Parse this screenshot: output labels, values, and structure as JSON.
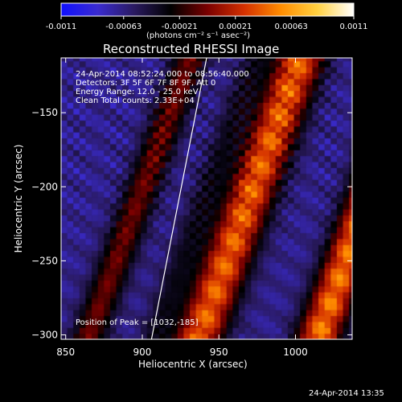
{
  "colorbar": {
    "tick_labels": [
      "-0.0011",
      "-0.00063",
      "-0.00021",
      "0.00021",
      "0.00063",
      "0.0011"
    ],
    "unit_label": "(photons cm⁻² s⁻¹ asec⁻²)",
    "colors": [
      "#1010ff",
      "#3a2bd0",
      "#2a1a60",
      "#000000",
      "#7a0000",
      "#d43000",
      "#ff8c00",
      "#ffd040",
      "#ffffff"
    ]
  },
  "plot": {
    "title": "Reconstructed RHESSI Image",
    "info_lines": [
      "24-Apr-2014 08:52:24.000 to 08:56:40.000",
      "Detectors: 3F 5F 6F 7F 8F 9F, Att 0",
      "Energy Range: 12.0 - 25.0 keV",
      "Clean    Total counts: 2.33E+04"
    ],
    "peak_label": "Position of Peak = [1032,-185]",
    "footer_timestamp": "24-Apr-2014 13:35"
  },
  "chart_data": {
    "type": "heatmap",
    "title": "Reconstructed RHESSI Image",
    "xlabel": "Heliocentric X (arcsec)",
    "ylabel": "Heliocentric Y (arcsec)",
    "xlim": [
      847,
      1037
    ],
    "ylim": [
      -303,
      -113
    ],
    "x_ticks": [
      850,
      900,
      950,
      1000
    ],
    "y_ticks": [
      -150,
      -200,
      -250,
      -300
    ],
    "colorbar_range": [
      -0.0011,
      0.0011
    ],
    "peak_position": [
      1032,
      -185
    ],
    "limb_line": [
      [
        906,
        -303
      ],
      [
        942,
        -113
      ]
    ],
    "pixel_size_arcsec": 4,
    "features": [
      {
        "x0": 830,
        "y0": -400,
        "x1": 950,
        "y1": -60,
        "amplitude": 0.55,
        "width": 8
      },
      {
        "x0": 872,
        "y0": -400,
        "x1": 992,
        "y1": -60,
        "amplitude": 0.25,
        "width": 7
      },
      {
        "x0": 902,
        "y0": -400,
        "x1": 1022,
        "y1": -60,
        "amplitude": 0.95,
        "width": 11
      },
      {
        "x0": 980,
        "y0": -400,
        "x1": 1100,
        "y1": -60,
        "amplitude": 1.0,
        "width": 10
      }
    ]
  }
}
